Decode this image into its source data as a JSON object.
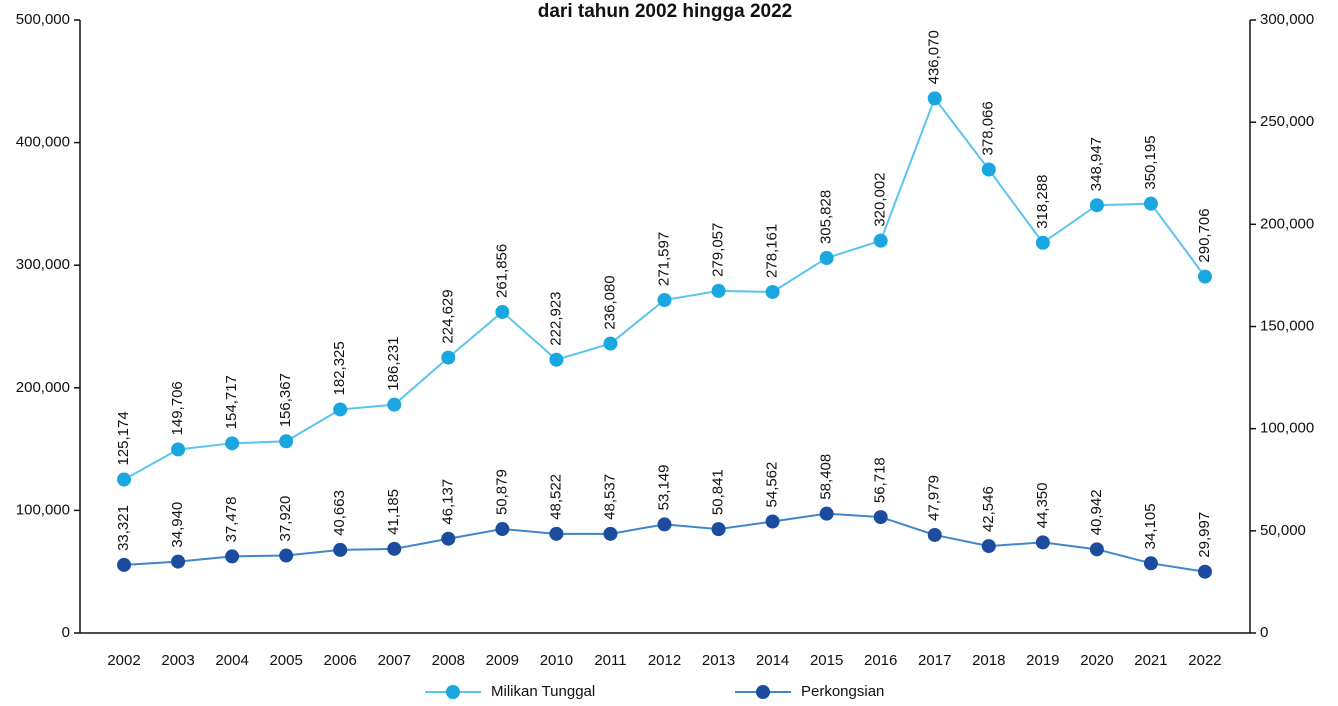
{
  "chart_data": {
    "type": "line",
    "title": "dari tahun 2002 hingga 2022",
    "categories": [
      "2002",
      "2003",
      "2004",
      "2005",
      "2006",
      "2007",
      "2008",
      "2009",
      "2010",
      "2011",
      "2012",
      "2013",
      "2014",
      "2015",
      "2016",
      "2017",
      "2018",
      "2019",
      "2020",
      "2021",
      "2022"
    ],
    "series": [
      {
        "name": "Milikan Tunggal",
        "color": "#5bc4ee",
        "marker_color": "#1aa7e0",
        "values": [
          125174,
          149706,
          154717,
          156367,
          182325,
          186231,
          224629,
          261856,
          222923,
          236080,
          271597,
          279057,
          278161,
          305828,
          320002,
          436070,
          378066,
          318288,
          348947,
          350195,
          290706
        ],
        "value_labels": [
          "125,174",
          "149,706",
          "154,717",
          "156,367",
          "182,325",
          "186,231",
          "224,629",
          "261,856",
          "222,923",
          "236,080",
          "271,597",
          "279,057",
          "278,161",
          "305,828",
          "320,002",
          "436,070",
          "378,066",
          "318,288",
          "348,947",
          "350,195",
          "290,706"
        ]
      },
      {
        "name": "Perkongsian",
        "color": "#3f86cc",
        "marker_color": "#1b4c9e",
        "axis": "y2",
        "values": [
          33321,
          34940,
          37478,
          37920,
          40663,
          41185,
          46137,
          50879,
          48522,
          48537,
          53149,
          50841,
          54562,
          58408,
          56718,
          47979,
          42546,
          44350,
          40942,
          34105,
          29997
        ],
        "value_labels": [
          "33,321",
          "34,940",
          "37,478",
          "37,920",
          "40,663",
          "41,185",
          "46,137",
          "50,879",
          "48,522",
          "48,537",
          "53,149",
          "50,841",
          "54,562",
          "58,408",
          "56,718",
          "47,979",
          "42,546",
          "44,350",
          "40,942",
          "34,105",
          "29,997"
        ]
      }
    ],
    "ylim": [
      0,
      500000
    ],
    "yticks": [
      0,
      {
        "value": 100000,
        "label": "100,000"
      },
      {
        "value": 200000,
        "label": "200,000"
      },
      {
        "value": 300000,
        "label": "300,000"
      },
      {
        "value": 400000,
        "label": "400,000"
      },
      {
        "value": 500000,
        "label": "500,000"
      }
    ],
    "y2lim": [
      0,
      300000
    ],
    "y2ticks": [
      0,
      {
        "value": 50000,
        "label": "50,000"
      },
      {
        "value": 100000,
        "label": "100,000"
      },
      {
        "value": 150000,
        "label": "150,000"
      },
      {
        "value": 200000,
        "label": "200,000"
      },
      {
        "value": 250000,
        "label": "250,000"
      },
      {
        "value": 300000,
        "label": "300,000"
      }
    ],
    "legend": "bottom"
  }
}
